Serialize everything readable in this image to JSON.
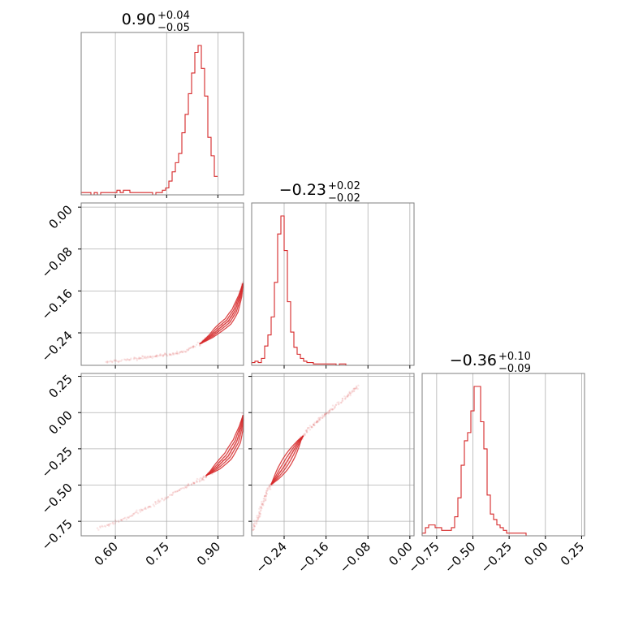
{
  "colors": {
    "accent": "#d62728",
    "grid": "#b0b0b0",
    "frame": "#7f7f7f"
  },
  "chart_data": {
    "type": "corner",
    "parameters": [
      {
        "title": {
          "median": "0.90",
          "plus": "+0.04",
          "minus": "−0.05"
        },
        "range": [
          0.5,
          0.975
        ],
        "ticks": [
          0.6,
          0.75,
          0.9
        ],
        "tick_labels": [
          "0.60",
          "0.75",
          "0.90"
        ]
      },
      {
        "title": {
          "median": "−0.23",
          "plus": "+0.02",
          "minus": "−0.02"
        },
        "range": [
          -0.302,
          0.008
        ],
        "ticks": [
          -0.24,
          -0.16,
          -0.08,
          0.0
        ],
        "tick_labels": [
          "−0.24",
          "−0.16",
          "−0.08",
          "0.00"
        ]
      },
      {
        "title": {
          "median": "−0.36",
          "plus": "+0.10",
          "minus": "−0.09"
        },
        "range": [
          -0.85,
          0.27
        ],
        "ticks": [
          -0.75,
          -0.5,
          -0.25,
          0.0,
          0.25
        ],
        "tick_labels": [
          "−0.75",
          "−0.50",
          "−0.25",
          "0.00",
          "0.25"
        ]
      }
    ],
    "histograms": [
      {
        "param": 0,
        "bin_edges_start": 0.5,
        "bin_width": 0.0095,
        "counts": [
          1,
          1,
          1,
          0,
          1,
          0,
          1,
          1,
          1,
          1,
          1,
          2,
          1,
          2,
          2,
          1,
          1,
          1,
          1,
          1,
          1,
          1,
          0,
          1,
          1,
          2,
          3,
          6,
          10,
          14,
          18,
          27,
          35,
          44,
          53,
          62,
          65,
          55,
          43,
          25,
          17,
          8
        ]
      },
      {
        "param": 1,
        "bin_edges_start": -0.302,
        "bin_width": 0.0062,
        "counts": [
          2,
          3,
          2,
          5,
          14,
          22,
          35,
          60,
          95,
          108,
          83,
          46,
          24,
          13,
          8,
          5,
          3,
          2,
          2,
          1,
          1,
          1,
          1,
          1,
          1,
          1,
          0,
          1,
          1,
          0,
          0,
          0,
          0,
          0,
          0,
          0,
          0,
          0,
          0,
          0
        ]
      },
      {
        "param": 2,
        "bin_edges_start": -0.85,
        "bin_width": 0.0224,
        "counts": [
          1,
          3,
          4,
          4,
          3,
          3,
          2,
          2,
          2,
          3,
          7,
          14,
          26,
          35,
          38,
          46,
          55,
          55,
          42,
          32,
          15,
          8,
          6,
          4,
          3,
          2,
          1,
          1,
          1,
          1,
          1,
          1,
          0,
          0,
          0,
          0,
          0,
          0,
          0,
          0,
          0,
          0,
          0,
          0,
          0,
          0,
          0,
          0,
          0,
          0
        ]
      }
    ],
    "scatter_panels": [
      {
        "x_param": 0,
        "y_param": 1,
        "curve": [
          [
            0.57,
            -0.296
          ],
          [
            0.65,
            -0.29
          ],
          [
            0.7,
            -0.286
          ],
          [
            0.75,
            -0.282
          ],
          [
            0.8,
            -0.275
          ],
          [
            0.85,
            -0.26
          ],
          [
            0.88,
            -0.246
          ],
          [
            0.9,
            -0.234
          ],
          [
            0.93,
            -0.218
          ],
          [
            0.95,
            -0.198
          ],
          [
            0.965,
            -0.17
          ],
          [
            0.975,
            -0.14
          ]
        ]
      },
      {
        "x_param": 0,
        "y_param": 2,
        "curve": [
          [
            0.55,
            -0.8
          ],
          [
            0.62,
            -0.74
          ],
          [
            0.68,
            -0.67
          ],
          [
            0.74,
            -0.6
          ],
          [
            0.8,
            -0.52
          ],
          [
            0.85,
            -0.46
          ],
          [
            0.88,
            -0.41
          ],
          [
            0.9,
            -0.37
          ],
          [
            0.93,
            -0.3
          ],
          [
            0.955,
            -0.2
          ],
          [
            0.968,
            -0.1
          ],
          [
            0.975,
            0.0
          ]
        ]
      },
      {
        "x_param": 1,
        "y_param": 2,
        "curve": [
          [
            -0.302,
            -0.82
          ],
          [
            -0.29,
            -0.72
          ],
          [
            -0.28,
            -0.62
          ],
          [
            -0.27,
            -0.52
          ],
          [
            -0.255,
            -0.45
          ],
          [
            -0.24,
            -0.37
          ],
          [
            -0.225,
            -0.28
          ],
          [
            -0.21,
            -0.19
          ],
          [
            -0.19,
            -0.1
          ],
          [
            -0.17,
            -0.04
          ],
          [
            -0.15,
            0.02
          ],
          [
            -0.12,
            0.11
          ],
          [
            -0.1,
            0.18
          ]
        ]
      }
    ],
    "grid": true,
    "legend": "none",
    "xlabel": "",
    "ylabel": ""
  }
}
